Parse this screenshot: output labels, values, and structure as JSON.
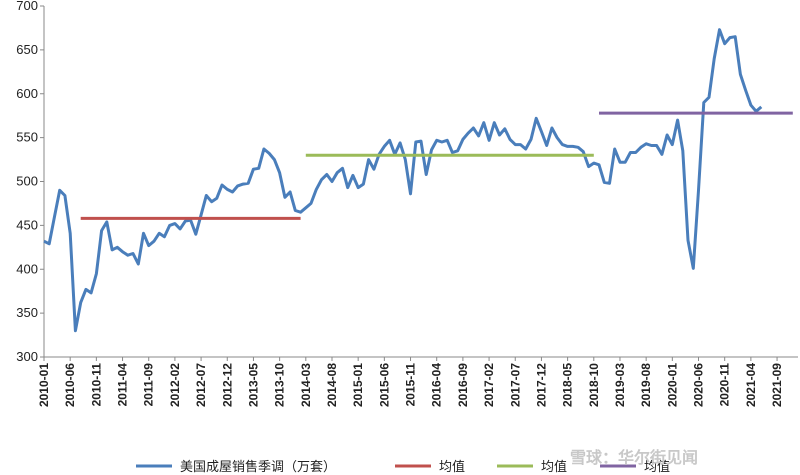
{
  "chart_data": {
    "type": "line",
    "title": "",
    "xlabel": "",
    "ylabel": "",
    "ylim": [
      300,
      700
    ],
    "yticks": [
      300,
      350,
      400,
      450,
      500,
      550,
      600,
      650,
      700
    ],
    "xtick_labels": [
      "2010-01",
      "2010-06",
      "2010-11",
      "2011-04",
      "2011-09",
      "2012-02",
      "2012-07",
      "2012-12",
      "2013-05",
      "2013-10",
      "2014-03",
      "2014-08",
      "2015-01",
      "2015-06",
      "2015-11",
      "2016-04",
      "2016-09",
      "2017-02",
      "2017-07",
      "2017-12",
      "2018-05",
      "2018-10",
      "2019-03",
      "2019-08",
      "2020-01",
      "2020-06",
      "2020-11",
      "2021-04",
      "2021-09"
    ],
    "grid": false,
    "legend_position": "bottom",
    "series": [
      {
        "name": "美国成屋销售季调（万套）",
        "color": "#4a7ebb",
        "x": [
          "2010-01",
          "2010-02",
          "2010-03",
          "2010-04",
          "2010-05",
          "2010-06",
          "2010-07",
          "2010-08",
          "2010-09",
          "2010-10",
          "2010-11",
          "2010-12",
          "2011-01",
          "2011-02",
          "2011-03",
          "2011-04",
          "2011-05",
          "2011-06",
          "2011-07",
          "2011-08",
          "2011-09",
          "2011-10",
          "2011-11",
          "2011-12",
          "2012-01",
          "2012-02",
          "2012-03",
          "2012-04",
          "2012-05",
          "2012-06",
          "2012-07",
          "2012-08",
          "2012-09",
          "2012-10",
          "2012-11",
          "2012-12",
          "2013-01",
          "2013-02",
          "2013-03",
          "2013-04",
          "2013-05",
          "2013-06",
          "2013-07",
          "2013-08",
          "2013-09",
          "2013-10",
          "2013-11",
          "2013-12",
          "2014-01",
          "2014-02",
          "2014-03",
          "2014-04",
          "2014-05",
          "2014-06",
          "2014-07",
          "2014-08",
          "2014-09",
          "2014-10",
          "2014-11",
          "2014-12",
          "2015-01",
          "2015-02",
          "2015-03",
          "2015-04",
          "2015-05",
          "2015-06",
          "2015-07",
          "2015-08",
          "2015-09",
          "2015-10",
          "2015-11",
          "2015-12",
          "2016-01",
          "2016-02",
          "2016-03",
          "2016-04",
          "2016-05",
          "2016-06",
          "2016-07",
          "2016-08",
          "2016-09",
          "2016-10",
          "2016-11",
          "2016-12",
          "2017-01",
          "2017-02",
          "2017-03",
          "2017-04",
          "2017-05",
          "2017-06",
          "2017-07",
          "2017-08",
          "2017-09",
          "2017-10",
          "2017-11",
          "2017-12",
          "2018-01",
          "2018-02",
          "2018-03",
          "2018-04",
          "2018-05",
          "2018-06",
          "2018-07",
          "2018-08",
          "2018-09",
          "2018-10",
          "2018-11",
          "2018-12",
          "2019-01",
          "2019-02",
          "2019-03",
          "2019-04",
          "2019-05",
          "2019-06",
          "2019-07",
          "2019-08",
          "2019-09",
          "2019-10",
          "2019-11",
          "2019-12",
          "2020-01",
          "2020-02",
          "2020-03",
          "2020-04",
          "2020-05",
          "2020-06",
          "2020-07",
          "2020-08",
          "2020-09",
          "2020-10",
          "2020-11",
          "2020-12",
          "2021-01",
          "2021-02",
          "2021-03",
          "2021-04",
          "2021-05",
          "2021-06"
        ],
        "values": [
          432,
          429,
          460,
          490,
          484,
          441,
          330,
          362,
          377,
          373,
          395,
          444,
          454,
          422,
          425,
          420,
          416,
          418,
          406,
          441,
          427,
          432,
          441,
          437,
          450,
          452,
          446,
          455,
          456,
          440,
          462,
          484,
          477,
          481,
          496,
          491,
          488,
          495,
          497,
          498,
          514,
          515,
          537,
          532,
          525,
          510,
          482,
          488,
          467,
          465,
          470,
          475,
          491,
          502,
          508,
          500,
          510,
          515,
          493,
          507,
          493,
          497,
          525,
          514,
          531,
          540,
          547,
          531,
          544,
          525,
          486,
          545,
          546,
          508,
          536,
          547,
          545,
          547,
          533,
          535,
          548,
          555,
          561,
          552,
          567,
          547,
          567,
          553,
          560,
          548,
          542,
          542,
          537,
          548,
          572,
          557,
          541,
          561,
          550,
          542,
          540,
          540,
          539,
          534,
          517,
          521,
          519,
          499,
          498,
          537,
          522,
          522,
          533,
          533,
          539,
          543,
          541,
          541,
          531,
          553,
          542,
          570,
          535,
          433,
          401,
          490,
          590,
          596,
          640,
          673,
          657,
          664,
          665,
          622,
          604,
          587,
          580,
          585
        ]
      },
      {
        "name": "均值",
        "color": "#c0504d",
        "x": [
          "2010-08",
          "2014-02"
        ],
        "values": [
          458,
          458
        ]
      },
      {
        "name": "均值",
        "color": "#9bbb59",
        "x": [
          "2014-03",
          "2018-10"
        ],
        "values": [
          530,
          530
        ]
      },
      {
        "name": "均值",
        "color": "#8064a2",
        "x": [
          "2018-11",
          "2021-12"
        ],
        "values": [
          578,
          578
        ]
      }
    ],
    "watermark": "雪球：华尔街见闻"
  }
}
